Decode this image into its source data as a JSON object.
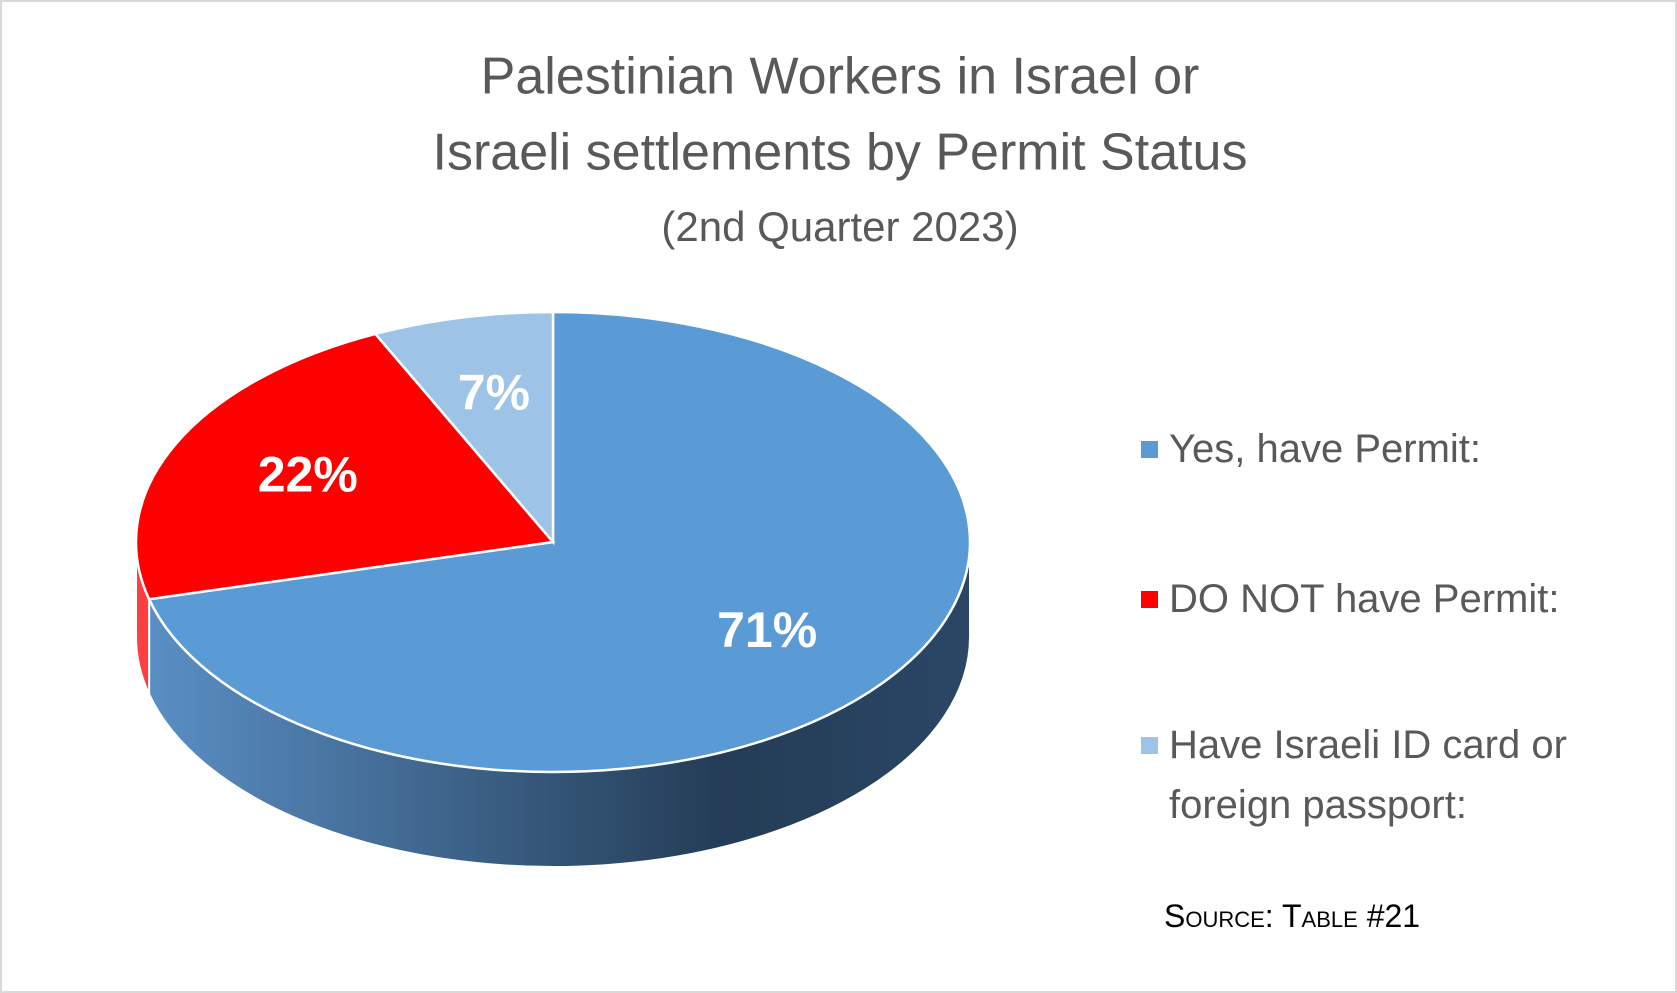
{
  "chart_data": {
    "type": "pie",
    "title": [
      "Palestinian Workers in Israel or",
      "Israeli settlements by Permit Status"
    ],
    "subtitle": "(2nd Quarter 2023)",
    "categories": [
      "Yes, have Permit:",
      "DO NOT have Permit:",
      "Have Israeli ID card or foreign passport:"
    ],
    "values": [
      71,
      22,
      7
    ],
    "value_labels": [
      "71%",
      "22%",
      "7%"
    ],
    "colors": [
      "#5b9bd5",
      "#ff0000",
      "#9dc3e6"
    ],
    "legend": "right",
    "note": "Source: Table #21"
  }
}
